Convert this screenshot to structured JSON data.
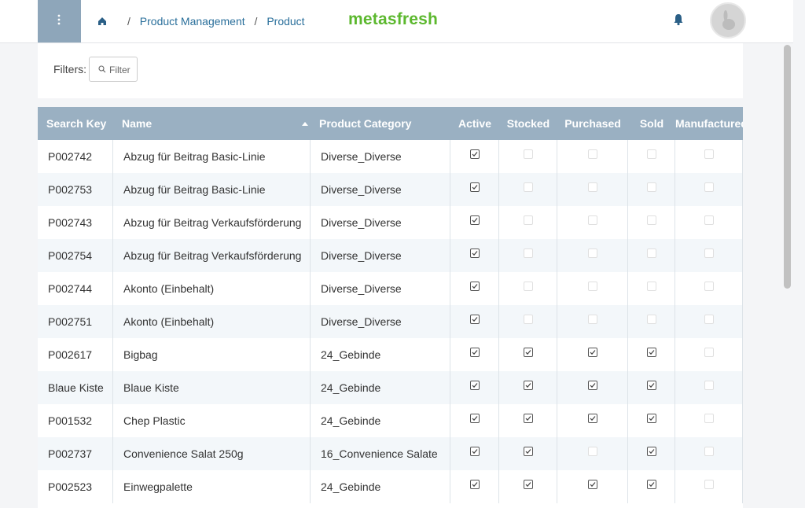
{
  "breadcrumb": {
    "separator": "/",
    "items": [
      "Product Management",
      "Product"
    ]
  },
  "logo": "metasfresh",
  "filters": {
    "label": "Filters:",
    "button": "Filter"
  },
  "table": {
    "columns": [
      "Search Key",
      "Name",
      "Product Category",
      "Active",
      "Stocked",
      "Purchased",
      "Sold",
      "Manufactured"
    ],
    "rows": [
      [
        "P002742",
        "Abzug für Beitrag Basic-Linie",
        "Diverse_Diverse",
        true,
        false,
        false,
        false,
        false
      ],
      [
        "P002753",
        "Abzug für Beitrag Basic-Linie",
        "Diverse_Diverse",
        true,
        false,
        false,
        false,
        false
      ],
      [
        "P002743",
        "Abzug für Beitrag Verkaufsförderung",
        "Diverse_Diverse",
        true,
        false,
        false,
        false,
        false
      ],
      [
        "P002754",
        "Abzug für Beitrag Verkaufsförderung",
        "Diverse_Diverse",
        true,
        false,
        false,
        false,
        false
      ],
      [
        "P002744",
        "Akonto (Einbehalt)",
        "Diverse_Diverse",
        true,
        false,
        false,
        false,
        false
      ],
      [
        "P002751",
        "Akonto (Einbehalt)",
        "Diverse_Diverse",
        true,
        false,
        false,
        false,
        false
      ],
      [
        "P002617",
        "Bigbag",
        "24_Gebinde",
        true,
        true,
        true,
        true,
        false
      ],
      [
        "Blaue Kiste",
        "Blaue Kiste",
        "24_Gebinde",
        true,
        true,
        true,
        true,
        false
      ],
      [
        "P001532",
        "Chep Plastic",
        "24_Gebinde",
        true,
        true,
        true,
        true,
        false
      ],
      [
        "P002737",
        "Convenience Salat 250g",
        "16_Convenience Salate",
        true,
        true,
        false,
        true,
        false
      ],
      [
        "P002523",
        "Einwegpalette",
        "24_Gebinde",
        true,
        true,
        true,
        true,
        false
      ]
    ]
  }
}
